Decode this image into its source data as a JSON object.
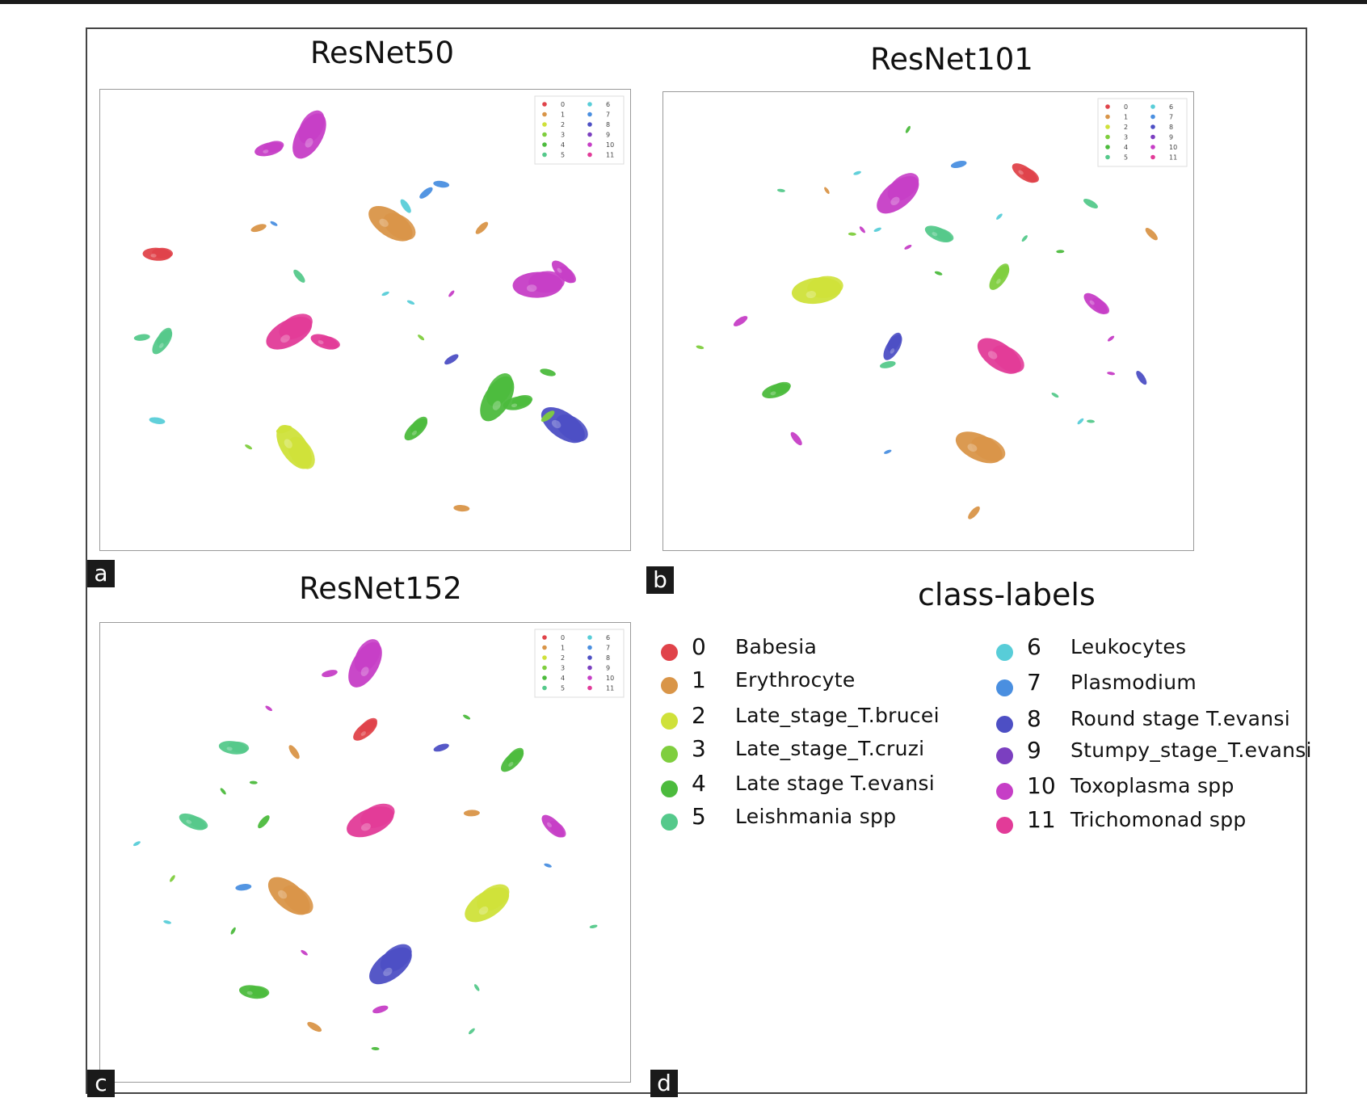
{
  "figure": {
    "panels": [
      {
        "letter": "a",
        "title": "ResNet50"
      },
      {
        "letter": "b",
        "title": "ResNet101"
      },
      {
        "letter": "c",
        "title": "ResNet152"
      },
      {
        "letter": "d",
        "title": "class-labels"
      }
    ]
  },
  "classes": [
    {
      "id": "0",
      "name": "Babesia",
      "color": "#e0434a"
    },
    {
      "id": "1",
      "name": "Erythrocyte",
      "color": "#d99548"
    },
    {
      "id": "2",
      "name": "Late_stage_T.brucei",
      "color": "#cfe13a"
    },
    {
      "id": "3",
      "name": "Late_stage_T.cruzi",
      "color": "#7fce3e"
    },
    {
      "id": "4",
      "name": "Late stage T.evansi",
      "color": "#4cbb3d"
    },
    {
      "id": "5",
      "name": "Leishmania spp",
      "color": "#55c98b"
    },
    {
      "id": "6",
      "name": "Leukocytes",
      "color": "#58cdd8"
    },
    {
      "id": "7",
      "name": "Plasmodium",
      "color": "#4a8fe0"
    },
    {
      "id": "8",
      "name": "Round stage T.evansi",
      "color": "#4d4fc4"
    },
    {
      "id": "9",
      "name": "Stumpy_stage_T.evansi",
      "color": "#7b3fc0"
    },
    {
      "id": "10",
      "name": "Toxoplasma spp",
      "color": "#c63ec6"
    },
    {
      "id": "11",
      "name": "Trichomonad spp",
      "color": "#e23b98"
    }
  ],
  "chart_data": [
    {
      "type": "scatter",
      "title": "ResNet50",
      "xlim": [
        0,
        100
      ],
      "ylim": [
        0,
        100
      ],
      "xlabel": "",
      "ylabel": "",
      "legend": "top-right",
      "grid": false,
      "points": [
        {
          "x": 39,
          "y": 92,
          "c": 10,
          "s": "lg"
        },
        {
          "x": 31,
          "y": 89,
          "c": 10,
          "s": "md"
        },
        {
          "x": 55,
          "y": 72,
          "c": 1,
          "s": "lg"
        },
        {
          "x": 62,
          "y": 79,
          "c": 7,
          "s": "sm"
        },
        {
          "x": 65,
          "y": 81,
          "c": 7,
          "s": "sm"
        },
        {
          "x": 58,
          "y": 76,
          "c": 6,
          "s": "sm"
        },
        {
          "x": 29,
          "y": 71,
          "c": 1,
          "s": "sm"
        },
        {
          "x": 32,
          "y": 72,
          "c": 7,
          "s": "xs"
        },
        {
          "x": 73,
          "y": 71,
          "c": 1,
          "s": "sm"
        },
        {
          "x": 9,
          "y": 65,
          "c": 0,
          "s": "md"
        },
        {
          "x": 37,
          "y": 60,
          "c": 5,
          "s": "sm"
        },
        {
          "x": 54,
          "y": 56,
          "c": 6,
          "s": "xs"
        },
        {
          "x": 59,
          "y": 54,
          "c": 6,
          "s": "xs"
        },
        {
          "x": 67,
          "y": 56,
          "c": 10,
          "s": "xs"
        },
        {
          "x": 84,
          "y": 58,
          "c": 10,
          "s": "lg"
        },
        {
          "x": 89,
          "y": 61,
          "c": 10,
          "s": "md"
        },
        {
          "x": 35,
          "y": 47,
          "c": 11,
          "s": "lg"
        },
        {
          "x": 42,
          "y": 45,
          "c": 11,
          "s": "md"
        },
        {
          "x": 10,
          "y": 45,
          "c": 5,
          "s": "md"
        },
        {
          "x": 6,
          "y": 46,
          "c": 5,
          "s": "sm"
        },
        {
          "x": 61,
          "y": 46,
          "c": 3,
          "s": "xs"
        },
        {
          "x": 67,
          "y": 41,
          "c": 8,
          "s": "sm"
        },
        {
          "x": 86,
          "y": 38,
          "c": 4,
          "s": "sm"
        },
        {
          "x": 76,
          "y": 32,
          "c": 4,
          "s": "lg"
        },
        {
          "x": 80,
          "y": 31,
          "c": 4,
          "s": "md"
        },
        {
          "x": 89,
          "y": 26,
          "c": 8,
          "s": "lg"
        },
        {
          "x": 86,
          "y": 28,
          "c": 3,
          "s": "sm"
        },
        {
          "x": 9,
          "y": 27,
          "c": 6,
          "s": "sm"
        },
        {
          "x": 36,
          "y": 21,
          "c": 2,
          "s": "lg"
        },
        {
          "x": 34,
          "y": 25,
          "c": 2,
          "s": "sm"
        },
        {
          "x": 27,
          "y": 21,
          "c": 3,
          "s": "xs"
        },
        {
          "x": 60,
          "y": 25,
          "c": 4,
          "s": "md"
        },
        {
          "x": 69,
          "y": 7,
          "c": 1,
          "s": "sm"
        }
      ]
    },
    {
      "type": "scatter",
      "title": "ResNet101",
      "xlim": [
        0,
        100
      ],
      "ylim": [
        0,
        100
      ],
      "xlabel": "",
      "ylabel": "",
      "legend": "top-right",
      "grid": false,
      "points": [
        {
          "x": 46,
          "y": 94,
          "c": 4,
          "s": "xs"
        },
        {
          "x": 56,
          "y": 86,
          "c": 7,
          "s": "sm"
        },
        {
          "x": 69,
          "y": 84,
          "c": 0,
          "s": "md"
        },
        {
          "x": 44,
          "y": 79,
          "c": 10,
          "s": "lg"
        },
        {
          "x": 21,
          "y": 80,
          "c": 5,
          "s": "xs"
        },
        {
          "x": 30,
          "y": 80,
          "c": 1,
          "s": "xs"
        },
        {
          "x": 36,
          "y": 84,
          "c": 6,
          "s": "xs"
        },
        {
          "x": 82,
          "y": 77,
          "c": 5,
          "s": "sm"
        },
        {
          "x": 64,
          "y": 74,
          "c": 6,
          "s": "xs"
        },
        {
          "x": 35,
          "y": 70,
          "c": 3,
          "s": "xs"
        },
        {
          "x": 37,
          "y": 71,
          "c": 10,
          "s": "xs"
        },
        {
          "x": 40,
          "y": 71,
          "c": 6,
          "s": "xs"
        },
        {
          "x": 52,
          "y": 70,
          "c": 5,
          "s": "md"
        },
        {
          "x": 69,
          "y": 69,
          "c": 5,
          "s": "xs"
        },
        {
          "x": 76,
          "y": 66,
          "c": 4,
          "s": "xs"
        },
        {
          "x": 94,
          "y": 70,
          "c": 1,
          "s": "sm"
        },
        {
          "x": 46,
          "y": 67,
          "c": 10,
          "s": "xs"
        },
        {
          "x": 52,
          "y": 61,
          "c": 4,
          "s": "xs"
        },
        {
          "x": 64,
          "y": 60,
          "c": 3,
          "s": "md"
        },
        {
          "x": 28,
          "y": 57,
          "c": 2,
          "s": "lg"
        },
        {
          "x": 83,
          "y": 54,
          "c": 10,
          "s": "md"
        },
        {
          "x": 13,
          "y": 50,
          "c": 10,
          "s": "sm"
        },
        {
          "x": 5,
          "y": 44,
          "c": 3,
          "s": "xs"
        },
        {
          "x": 43,
          "y": 44,
          "c": 8,
          "s": "md"
        },
        {
          "x": 42,
          "y": 40,
          "c": 5,
          "s": "sm"
        },
        {
          "x": 64,
          "y": 42,
          "c": 11,
          "s": "lg"
        },
        {
          "x": 86,
          "y": 46,
          "c": 10,
          "s": "xs"
        },
        {
          "x": 86,
          "y": 38,
          "c": 10,
          "s": "xs"
        },
        {
          "x": 92,
          "y": 37,
          "c": 8,
          "s": "sm"
        },
        {
          "x": 20,
          "y": 34,
          "c": 4,
          "s": "md"
        },
        {
          "x": 75,
          "y": 33,
          "c": 5,
          "s": "xs"
        },
        {
          "x": 80,
          "y": 27,
          "c": 6,
          "s": "xs"
        },
        {
          "x": 82,
          "y": 27,
          "c": 5,
          "s": "xs"
        },
        {
          "x": 24,
          "y": 23,
          "c": 10,
          "s": "sm"
        },
        {
          "x": 42,
          "y": 20,
          "c": 7,
          "s": "xs"
        },
        {
          "x": 60,
          "y": 21,
          "c": 1,
          "s": "lg"
        },
        {
          "x": 59,
          "y": 6,
          "c": 1,
          "s": "sm"
        }
      ]
    },
    {
      "type": "scatter",
      "title": "ResNet152",
      "xlim": [
        0,
        100
      ],
      "ylim": [
        0,
        100
      ],
      "xlabel": "",
      "ylabel": "",
      "legend": "top-right",
      "grid": false,
      "points": [
        {
          "x": 50,
          "y": 93,
          "c": 10,
          "s": "lg"
        },
        {
          "x": 43,
          "y": 91,
          "c": 10,
          "s": "sm"
        },
        {
          "x": 31,
          "y": 83,
          "c": 10,
          "s": "xs"
        },
        {
          "x": 50,
          "y": 78,
          "c": 0,
          "s": "md"
        },
        {
          "x": 24,
          "y": 74,
          "c": 5,
          "s": "md"
        },
        {
          "x": 36,
          "y": 73,
          "c": 1,
          "s": "sm"
        },
        {
          "x": 65,
          "y": 74,
          "c": 8,
          "s": "sm"
        },
        {
          "x": 70,
          "y": 81,
          "c": 4,
          "s": "xs"
        },
        {
          "x": 79,
          "y": 71,
          "c": 4,
          "s": "md"
        },
        {
          "x": 28,
          "y": 66,
          "c": 4,
          "s": "xs"
        },
        {
          "x": 22,
          "y": 64,
          "c": 4,
          "s": "xs"
        },
        {
          "x": 51,
          "y": 57,
          "c": 11,
          "s": "lg"
        },
        {
          "x": 16,
          "y": 57,
          "c": 5,
          "s": "md"
        },
        {
          "x": 30,
          "y": 57,
          "c": 4,
          "s": "sm"
        },
        {
          "x": 71,
          "y": 59,
          "c": 1,
          "s": "sm"
        },
        {
          "x": 87,
          "y": 56,
          "c": 10,
          "s": "md"
        },
        {
          "x": 5,
          "y": 52,
          "c": 6,
          "s": "xs"
        },
        {
          "x": 86,
          "y": 47,
          "c": 7,
          "s": "xs"
        },
        {
          "x": 12,
          "y": 44,
          "c": 3,
          "s": "xs"
        },
        {
          "x": 26,
          "y": 42,
          "c": 7,
          "s": "sm"
        },
        {
          "x": 35,
          "y": 40,
          "c": 1,
          "s": "lg"
        },
        {
          "x": 74,
          "y": 38,
          "c": 2,
          "s": "lg"
        },
        {
          "x": 11,
          "y": 34,
          "c": 6,
          "s": "xs"
        },
        {
          "x": 24,
          "y": 32,
          "c": 4,
          "s": "xs"
        },
        {
          "x": 95,
          "y": 33,
          "c": 5,
          "s": "xs"
        },
        {
          "x": 38,
          "y": 27,
          "c": 10,
          "s": "xs"
        },
        {
          "x": 55,
          "y": 24,
          "c": 8,
          "s": "lg"
        },
        {
          "x": 28,
          "y": 18,
          "c": 4,
          "s": "md"
        },
        {
          "x": 72,
          "y": 19,
          "c": 5,
          "s": "xs"
        },
        {
          "x": 53,
          "y": 14,
          "c": 10,
          "s": "sm"
        },
        {
          "x": 40,
          "y": 10,
          "c": 1,
          "s": "sm"
        },
        {
          "x": 71,
          "y": 9,
          "c": 5,
          "s": "xs"
        },
        {
          "x": 52,
          "y": 5,
          "c": 4,
          "s": "xs"
        }
      ]
    }
  ]
}
